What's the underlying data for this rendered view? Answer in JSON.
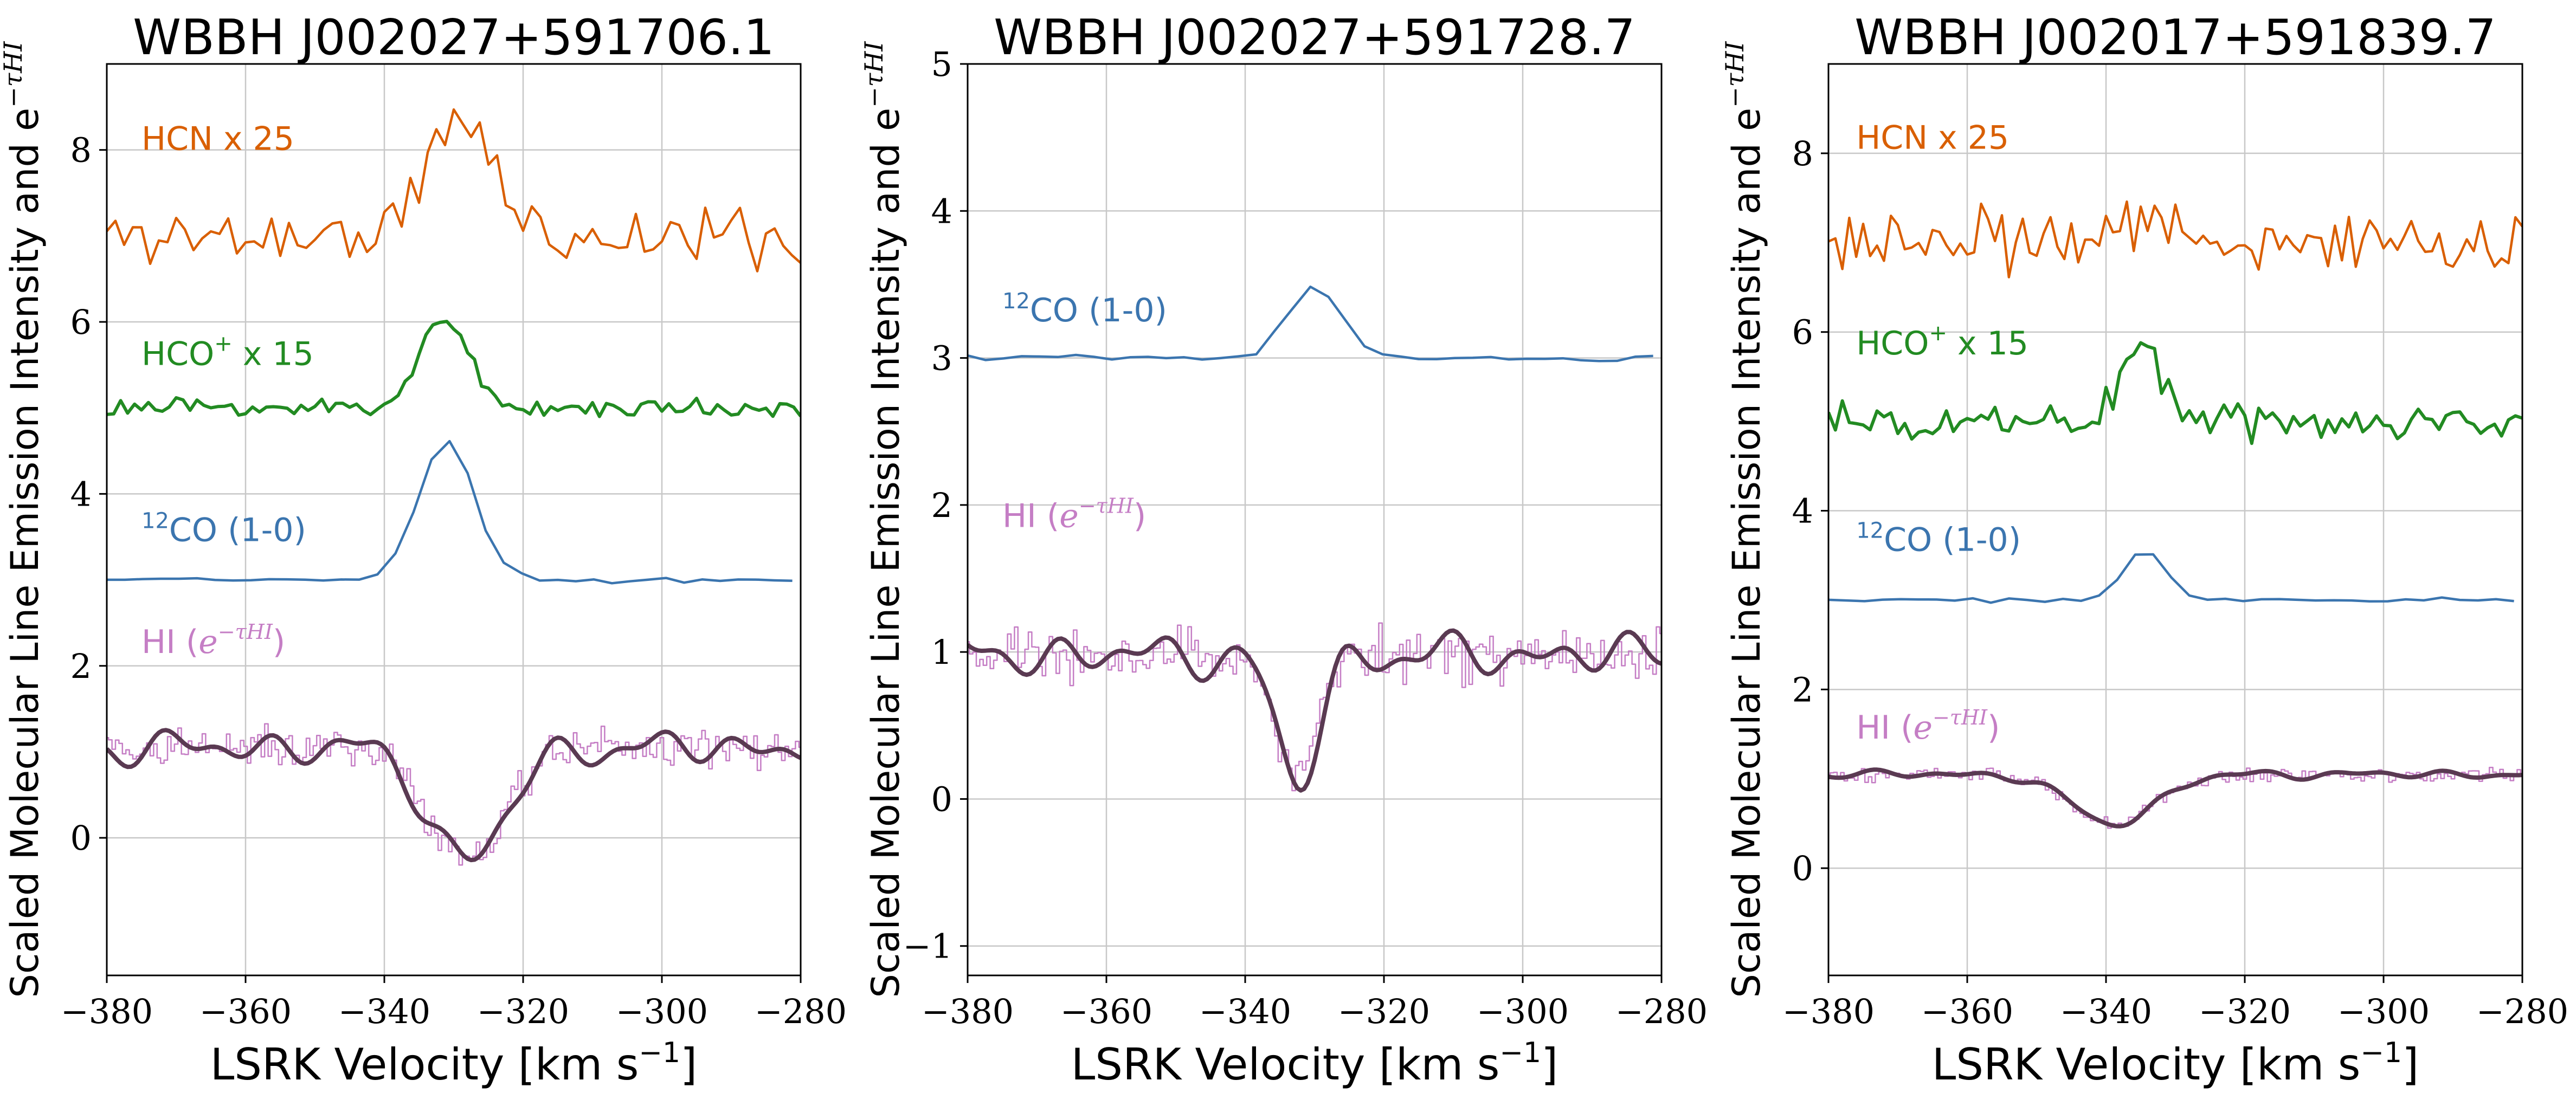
{
  "figure": {
    "shared_xlabel": "LSRK Velocity [km s",
    "shared_xlabel_sup": "−1",
    "shared_xlabel_end": "]",
    "ylabel": "Scaled Molecular Line Emission Intensity and e",
    "ylabel_sup": "−τHI"
  },
  "colors": {
    "HCN": "#d95f02",
    "HCO+": "#228b22",
    "CO": "#3b75af",
    "HI": "#c57ec5",
    "HI_smooth": "#5a3a52",
    "grid": "#c8c8c8",
    "axis": "#000000"
  },
  "chart_data": [
    {
      "type": "line",
      "title": "WBBH J002027+591706.1",
      "xlabel": "LSRK Velocity [km s−1]",
      "ylabel": "Scaled Molecular Line Emission Intensity and e−τHI",
      "xlim": [
        -380,
        -280
      ],
      "ylim": [
        -1.6,
        9.0
      ],
      "xticks": [
        -380,
        -360,
        -340,
        -320,
        -300,
        -280
      ],
      "xtick_labels": [
        "−380",
        "−360",
        "−340",
        "−320",
        "−300",
        "−280"
      ],
      "yticks": [
        0,
        2,
        4,
        6,
        8
      ],
      "ytick_labels": [
        "0",
        "2",
        "4",
        "6",
        "8"
      ],
      "grid": true,
      "series": [
        {
          "key": "HCN",
          "name": "HCN x 25",
          "label_text": "HCN x 25",
          "label_at": [
            -375,
            8.0
          ],
          "style": "line",
          "baseline": 7.0,
          "noise": 0.55,
          "seed": 11,
          "step": 1.25,
          "peak": {
            "center": -329,
            "width": 4.5,
            "amp": 1.4
          }
        },
        {
          "key": "HCO+",
          "name": "HCO+ x 15",
          "label_text": "HCO",
          "label_sup": "+",
          "label_suffix": " x 15",
          "label_at": [
            -375,
            5.5
          ],
          "style": "line",
          "baseline": 5.0,
          "noise": 0.16,
          "seed": 23,
          "step": 1.0,
          "peak": {
            "center": -331.5,
            "width": 3.5,
            "amp": 1.05
          }
        },
        {
          "key": "CO",
          "name": "12CO (1-0)",
          "label_pre_sup": "12",
          "label_text": "CO (1-0)",
          "label_at": [
            -375,
            3.45
          ],
          "style": "line",
          "baseline": 3.0,
          "noise": 0.05,
          "seed": 37,
          "step": 2.6,
          "peak": {
            "center": -331,
            "width": 4.0,
            "amp": 1.62
          }
        },
        {
          "key": "HI",
          "name": "HI (e−τHI)",
          "label_text": "HI (",
          "label_math": "e",
          "label_sup": "−τHI",
          "label_suffix": ")",
          "label_at": [
            -375,
            2.15
          ],
          "style": "step",
          "baseline": 1.05,
          "noise": 0.35,
          "seed": 41,
          "step": 0.5,
          "trough": {
            "center": -328,
            "width": 5.5,
            "depth": 1.3
          }
        },
        {
          "key": "HI_smooth",
          "name": "HI smoothed",
          "style": "smooth",
          "baseline": 1.05,
          "wiggle": 0.25,
          "seed": 53,
          "trough": {
            "center": -328,
            "width": 5.5,
            "depth": 1.3
          }
        }
      ]
    },
    {
      "type": "line",
      "title": "WBBH J002027+591728.7",
      "xlabel": "LSRK Velocity [km s−1]",
      "ylabel": "Scaled Molecular Line Emission Intensity and e−τHI",
      "xlim": [
        -380,
        -280
      ],
      "ylim": [
        -1.2,
        5.0
      ],
      "xticks": [
        -380,
        -360,
        -340,
        -320,
        -300,
        -280
      ],
      "xtick_labels": [
        "−380",
        "−360",
        "−340",
        "−320",
        "−300",
        "−280"
      ],
      "yticks": [
        -1,
        0,
        1,
        2,
        3,
        4,
        5
      ],
      "ytick_labels": [
        "−1",
        "0",
        "1",
        "2",
        "3",
        "4",
        "5"
      ],
      "grid": true,
      "series": [
        {
          "key": "CO",
          "name": "12CO (1-0)",
          "label_pre_sup": "12",
          "label_text": "CO (1-0)",
          "label_at": [
            -375,
            3.25
          ],
          "style": "line",
          "baseline": 3.0,
          "noise": 0.04,
          "seed": 61,
          "step": 2.6,
          "peak": {
            "center": -330,
            "width": 3.8,
            "amp": 0.48
          }
        },
        {
          "key": "HI",
          "name": "HI (e−τHI)",
          "label_text": "HI (",
          "label_math": "e",
          "label_sup": "−τHI",
          "label_suffix": ")",
          "label_at": [
            -375,
            1.85
          ],
          "style": "step",
          "baseline": 0.98,
          "noise": 0.28,
          "seed": 67,
          "step": 0.5,
          "trough": {
            "center": -332.5,
            "width": 3.0,
            "depth": 0.88
          }
        },
        {
          "key": "HI_smooth",
          "name": "HI smoothed",
          "style": "smooth",
          "baseline": 0.98,
          "wiggle": 0.18,
          "seed": 71,
          "trough": {
            "center": -332.5,
            "width": 3.0,
            "depth": 0.88
          }
        }
      ]
    },
    {
      "type": "line",
      "title": "WBBH J002017+591839.7",
      "xlabel": "LSRK Velocity [km s−1]",
      "ylabel": "Scaled Molecular Line Emission Intensity and e−τHI",
      "xlim": [
        -380,
        -280
      ],
      "ylim": [
        -1.2,
        9.0
      ],
      "xticks": [
        -380,
        -360,
        -340,
        -320,
        -300,
        -280
      ],
      "xtick_labels": [
        "−380",
        "−360",
        "−340",
        "−320",
        "−300",
        "−280"
      ],
      "yticks": [
        0,
        2,
        4,
        6,
        8
      ],
      "ytick_labels": [
        "0",
        "2",
        "4",
        "6",
        "8"
      ],
      "grid": true,
      "series": [
        {
          "key": "HCN",
          "name": "HCN x 25",
          "label_text": "HCN x 25",
          "label_at": [
            -376,
            8.05
          ],
          "style": "line",
          "baseline": 7.0,
          "noise": 0.55,
          "seed": 83,
          "step": 1.0,
          "peak": {
            "center": -334,
            "width": 3.0,
            "amp": 0.3
          }
        },
        {
          "key": "HCO+",
          "name": "HCO+ x 15",
          "label_text": "HCO",
          "label_sup": "+",
          "label_suffix": " x 15",
          "label_at": [
            -376,
            5.75
          ],
          "style": "line",
          "baseline": 5.0,
          "noise": 0.32,
          "seed": 89,
          "step": 1.0,
          "peak": {
            "center": -335,
            "width": 3.0,
            "amp": 0.9
          }
        },
        {
          "key": "CO",
          "name": "12CO (1-0)",
          "label_pre_sup": "12",
          "label_text": "CO (1-0)",
          "label_at": [
            -376,
            3.55
          ],
          "style": "line",
          "baseline": 3.0,
          "noise": 0.04,
          "seed": 97,
          "step": 2.6,
          "peak": {
            "center": -334.5,
            "width": 3.0,
            "amp": 0.55
          }
        },
        {
          "key": "HI",
          "name": "HI (e−τHI)",
          "label_text": "HI (",
          "label_math": "e",
          "label_sup": "−τHI",
          "label_suffix": ")",
          "label_at": [
            -376,
            1.45
          ],
          "style": "step",
          "baseline": 1.05,
          "noise": 0.12,
          "seed": 101,
          "step": 0.5,
          "trough": {
            "center": -339,
            "width": 6.0,
            "depth": 0.55
          }
        },
        {
          "key": "HI_smooth",
          "name": "HI smoothed",
          "style": "smooth",
          "baseline": 1.05,
          "wiggle": 0.06,
          "seed": 103,
          "trough": {
            "center": -339,
            "width": 6.0,
            "depth": 0.55
          }
        }
      ]
    }
  ]
}
